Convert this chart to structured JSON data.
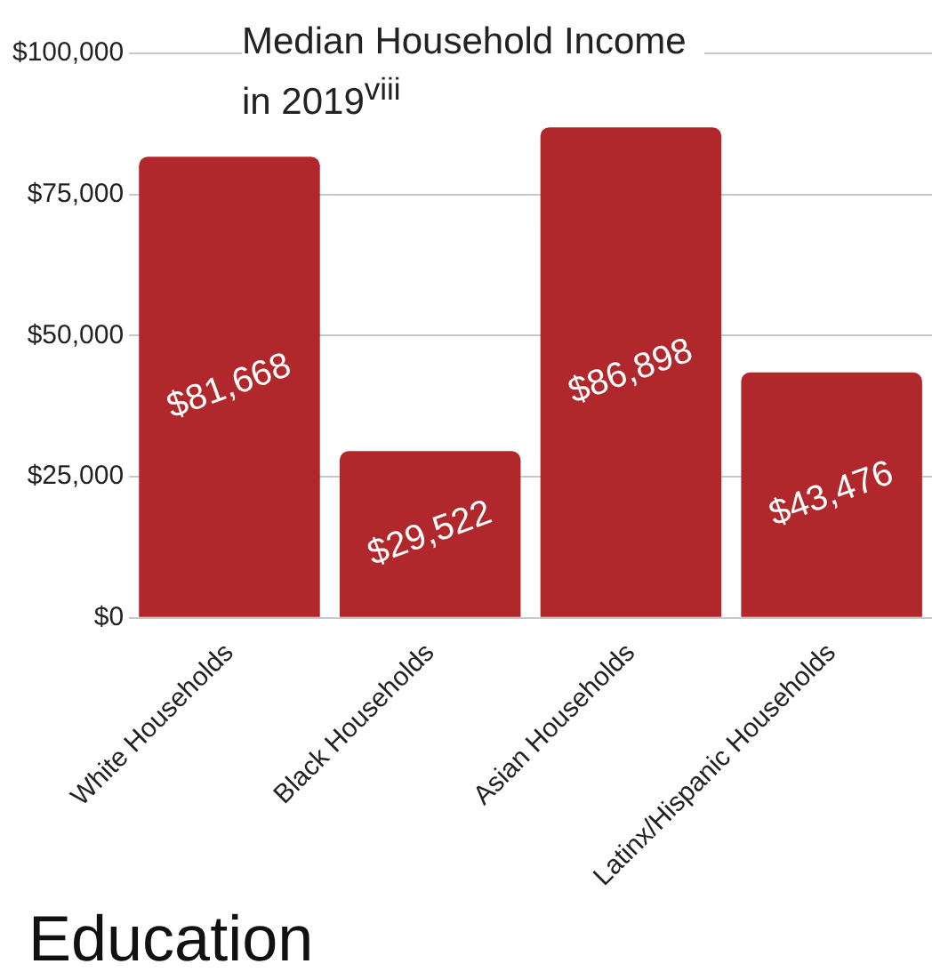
{
  "chart_data": {
    "type": "bar",
    "title": "Median Household Income in 2019$^{viii}$",
    "categories": [
      "White Households",
      "Black Households",
      "Asian Households",
      "Latinx/Hispanic Households"
    ],
    "values": [
      81668,
      29522,
      86898,
      43476
    ],
    "value_labels": [
      "$81,668",
      "$29,522",
      "$86,898",
      "$43,476"
    ],
    "color": "#b0282b",
    "ylim": [
      0,
      100000
    ],
    "yticks": [
      {
        "value": 0,
        "label": "$0"
      },
      {
        "value": 25000,
        "label": "$25,000"
      },
      {
        "value": 50000,
        "label": "$50,000"
      },
      {
        "value": 75000,
        "label": "$75,000"
      },
      {
        "value": 100000,
        "label": "$100,000"
      }
    ],
    "grid": "y",
    "annotations": [
      "Education"
    ]
  }
}
